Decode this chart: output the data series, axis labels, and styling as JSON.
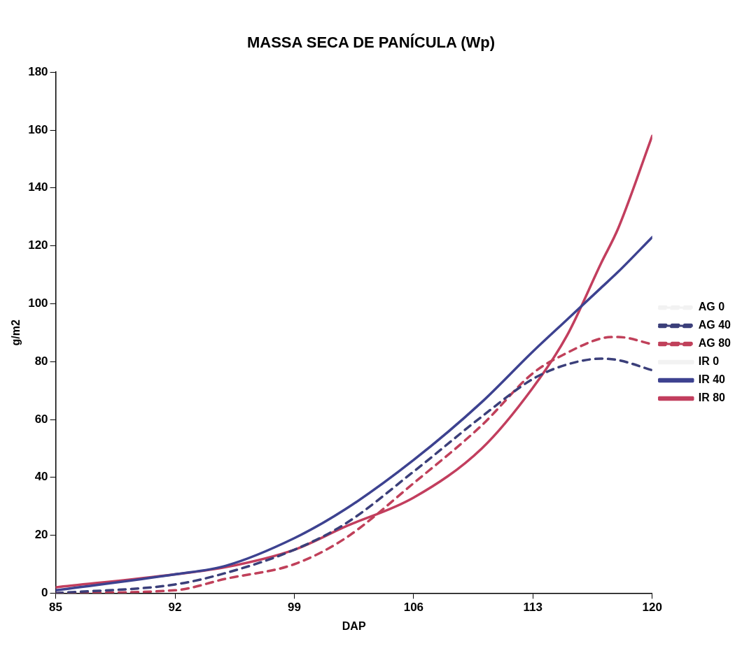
{
  "chart_data": {
    "type": "line",
    "title": "MASSA SECA  DE PANÍCULA (Wp)",
    "xlabel": "DAP",
    "ylabel": "g/m2",
    "x": [
      85,
      92,
      95,
      99,
      102,
      106,
      110,
      113,
      115,
      117,
      118,
      120
    ],
    "series": [
      {
        "name": "AG 0",
        "color": "#f2f2f2",
        "line_style": "dashed",
        "values": [
          null,
          null,
          null,
          null,
          null,
          null,
          null,
          null,
          null,
          null,
          null,
          null
        ]
      },
      {
        "name": "AG 40",
        "color": "#3b3f7a",
        "line_style": "dashed",
        "values": [
          0,
          3,
          7,
          15,
          24,
          42,
          61,
          74,
          79,
          81,
          80.5,
          77
        ]
      },
      {
        "name": "AG 80",
        "color": "#c0405a",
        "line_style": "dashed",
        "values": [
          0,
          1,
          5,
          10,
          19,
          38,
          58,
          76,
          83,
          88,
          88.5,
          86
        ]
      },
      {
        "name": "IR 0",
        "color": "#f2f2f2",
        "line_style": "solid",
        "values": [
          null,
          null,
          null,
          null,
          null,
          null,
          null,
          null,
          null,
          null,
          null,
          null
        ]
      },
      {
        "name": "IR 40",
        "color": "#3d4290",
        "line_style": "solid",
        "values": [
          1,
          6.5,
          9.5,
          19,
          29,
          46,
          66,
          83.5,
          94.5,
          105.5,
          111,
          123
        ]
      },
      {
        "name": "IR 80",
        "color": "#c23e5e",
        "line_style": "solid",
        "values": [
          2,
          6.5,
          9,
          15,
          23,
          33,
          50,
          71,
          89,
          114,
          126,
          158
        ]
      }
    ],
    "xlim": [
      85,
      120
    ],
    "xticks": [
      85,
      92,
      99,
      106,
      113,
      120
    ],
    "ylim": [
      0,
      180
    ],
    "yticks": [
      0,
      20,
      40,
      60,
      80,
      100,
      120,
      140,
      160,
      180
    ],
    "grid": false,
    "legend": "right",
    "marker": "none"
  }
}
